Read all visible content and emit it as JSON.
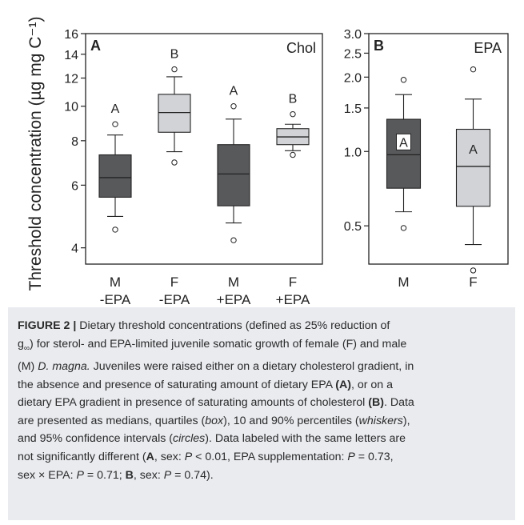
{
  "chart_data": [
    {
      "type": "box",
      "panel_label": "A",
      "series_label": "Chol",
      "ylabel": "Threshold concentration (µg mg C⁻¹)",
      "yscale": "log",
      "ylim": [
        3.6,
        16
      ],
      "yticks": [
        4,
        6,
        8,
        10,
        12,
        14,
        16
      ],
      "categories": [
        {
          "line1": "M",
          "line2": "-EPA"
        },
        {
          "line1": "F",
          "line2": "-EPA"
        },
        {
          "line1": "M",
          "line2": "+EPA"
        },
        {
          "line1": "F",
          "line2": "+EPA"
        }
      ],
      "boxes": [
        {
          "p10": 4.9,
          "q1": 5.55,
          "median": 6.3,
          "q3": 7.3,
          "p90": 8.3,
          "outliers": [
            4.5,
            8.9
          ],
          "letter": "A",
          "color": "#58595b"
        },
        {
          "p10": 7.45,
          "q1": 8.45,
          "median": 9.6,
          "q3": 10.8,
          "p90": 12.1,
          "outliers": [
            6.95,
            12.7
          ],
          "letter": "B",
          "color": "#d1d3d6"
        },
        {
          "p10": 4.7,
          "q1": 5.25,
          "median": 6.45,
          "q3": 7.8,
          "p90": 9.2,
          "outliers": [
            4.2,
            10.0
          ],
          "letter": "A",
          "color": "#58595b"
        },
        {
          "p10": 7.5,
          "q1": 7.8,
          "median": 8.2,
          "q3": 8.65,
          "p90": 8.9,
          "outliers": [
            7.3,
            9.5
          ],
          "letter": "B",
          "color": "#d1d3d6"
        }
      ]
    },
    {
      "type": "box",
      "panel_label": "B",
      "series_label": "EPA",
      "yscale": "log",
      "ylim": [
        0.35,
        3.0
      ],
      "yticks": [
        0.5,
        1.0,
        1.5,
        2.0,
        2.5,
        3.0
      ],
      "ytick_labels": [
        "0.5",
        "1.0",
        "1.5",
        "2.0",
        "2.5",
        "3.0"
      ],
      "categories": [
        {
          "line1": "M",
          "line2": ""
        },
        {
          "line1": "F",
          "line2": ""
        }
      ],
      "boxes": [
        {
          "p10": 0.57,
          "q1": 0.71,
          "median": 0.97,
          "q3": 1.35,
          "p90": 1.7,
          "outliers": [
            0.49,
            1.95
          ],
          "letter": "A",
          "letter_boxed": true,
          "color": "#58595b"
        },
        {
          "p10": 0.42,
          "q1": 0.6,
          "median": 0.87,
          "q3": 1.23,
          "p90": 1.63,
          "outliers": [
            0.33,
            2.15
          ],
          "letter": "A",
          "letter_boxed": false,
          "color": "#d1d3d6"
        }
      ]
    }
  ],
  "caption": {
    "figure_label": "FIGURE 2 |",
    "line1": " Dietary threshold concentrations (defined as 25% reduction of",
    "line2_a": "g",
    "line2_sub": "∞",
    "line2_b": ") for sterol- and EPA-limited juvenile somatic growth of female (F) and male",
    "line3_a": "(M) ",
    "line3_italic": "D. magna.",
    "line3_b": " Juveniles were raised either on a dietary cholesterol gradient, in",
    "line4_a": "the absence and presence of saturating amount of dietary EPA ",
    "line4_bold": "(A)",
    "line4_b": ", or on a",
    "line5_a": "dietary EPA gradient in presence of saturating amounts of cholesterol ",
    "line5_bold": "(B)",
    "line5_b": ". Data",
    "line6_a": "are presented as medians, quartiles (",
    "line6_i1": "box",
    "line6_b": "), 10 and 90% percentiles (",
    "line6_i2": "whiskers",
    "line6_c": "),",
    "line7_a": "and 95% confidence intervals (",
    "line7_i": "circles",
    "line7_b": "). Data labeled with the same letters are",
    "line8_a": "not significantly different (",
    "line8_bold": "A",
    "line8_b": ", sex: ",
    "line8_P": "P",
    "line8_c": " < 0.01, EPA supplementation: ",
    "line8_P2": "P",
    "line8_d": " = 0.73,",
    "line9_a": "sex × EPA: ",
    "line9_P": "P",
    "line9_b": " = 0.71; ",
    "line9_bold": "B",
    "line9_c": ", sex: ",
    "line9_P2": "P",
    "line9_d": " = 0.74)."
  }
}
